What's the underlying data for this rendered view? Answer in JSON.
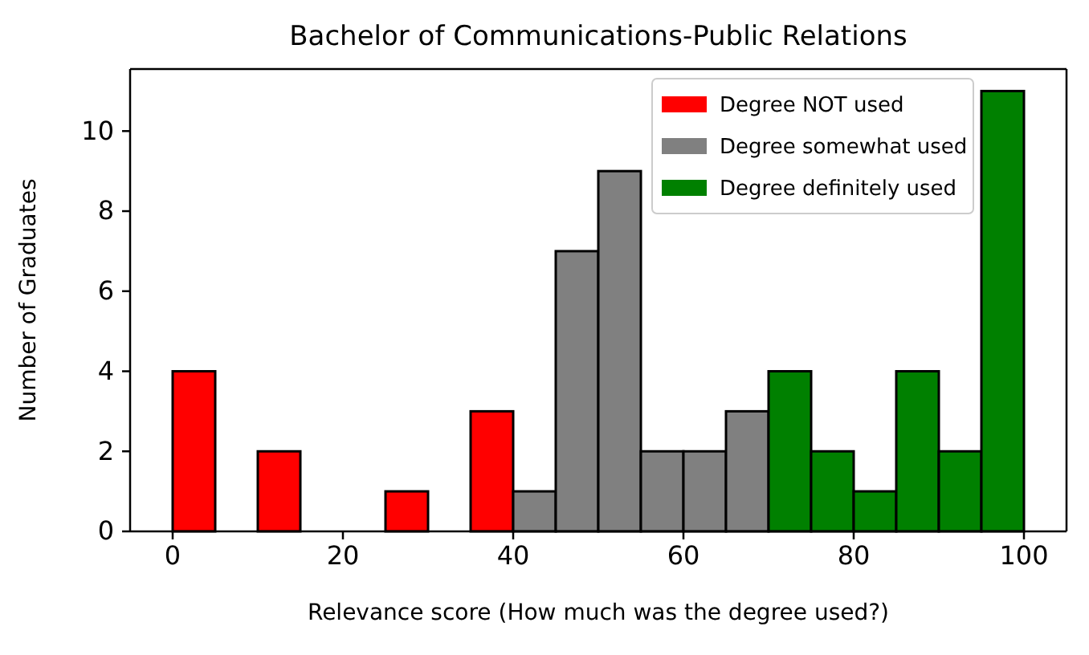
{
  "chart_data": {
    "type": "histogram",
    "title": "Bachelor of Communications-Public Relations",
    "xlabel": "Relevance score (How much was the degree used?)",
    "ylabel": "Number of Graduates",
    "xlim": [
      -5,
      105
    ],
    "ylim": [
      0,
      11.55
    ],
    "xticks": [
      0,
      20,
      40,
      60,
      80,
      100
    ],
    "yticks": [
      0,
      2,
      4,
      6,
      8,
      10
    ],
    "legend": "top right",
    "bins": [
      0,
      5,
      10,
      15,
      20,
      25,
      30,
      35,
      40,
      45,
      50,
      55,
      60,
      65,
      70,
      75,
      80,
      85,
      90,
      95,
      100
    ],
    "series": [
      {
        "name": "Degree NOT used",
        "color": "#ff0000",
        "values": [
          4,
          0,
          2,
          0,
          0,
          1,
          0,
          3,
          null,
          null,
          null,
          null,
          null,
          null,
          null,
          null,
          null,
          null,
          null,
          null
        ]
      },
      {
        "name": "Degree somewhat used",
        "color": "#808080",
        "values": [
          null,
          null,
          null,
          null,
          null,
          null,
          null,
          null,
          1,
          7,
          9,
          2,
          2,
          3,
          null,
          null,
          null,
          null,
          null,
          null
        ]
      },
      {
        "name": "Degree definitely used",
        "color": "#008000",
        "values": [
          null,
          null,
          null,
          null,
          null,
          null,
          null,
          null,
          null,
          null,
          null,
          null,
          null,
          null,
          4,
          2,
          1,
          4,
          2,
          11
        ]
      }
    ]
  }
}
